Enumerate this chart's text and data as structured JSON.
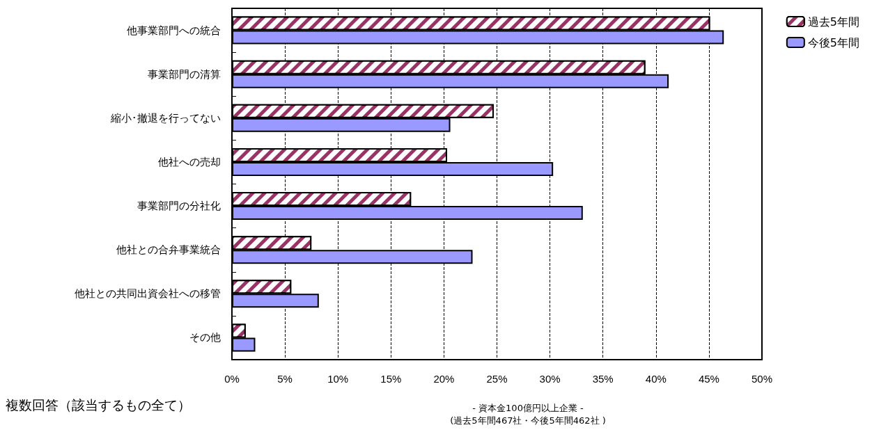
{
  "chart_data": {
    "type": "bar",
    "orientation": "horizontal",
    "categories": [
      "他事業部門への統合",
      "事業部門の清算",
      "縮小･撤退を行ってない",
      "他社への売却",
      "事業部門の分社化",
      "他社との合弁事業統合",
      "他社との共同出資会社への移管",
      "その他"
    ],
    "series": [
      {
        "name": "過去5年間",
        "color": "#993366",
        "values": [
          45.1,
          39.0,
          24.7,
          20.3,
          16.9,
          7.5,
          5.6,
          1.3
        ]
      },
      {
        "name": "今後5年間",
        "color": "#9999ff",
        "values": [
          46.4,
          41.2,
          20.6,
          30.3,
          33.1,
          22.7,
          8.2,
          2.2
        ]
      }
    ],
    "xlim": [
      0,
      50
    ],
    "xticks": [
      {
        "value": 0,
        "label": "0%"
      },
      {
        "value": 5,
        "label": "5%"
      },
      {
        "value": 10,
        "label": "10%"
      },
      {
        "value": 15,
        "label": "15%"
      },
      {
        "value": 20,
        "label": "20%"
      },
      {
        "value": 25,
        "label": "25%"
      },
      {
        "value": 30,
        "label": "30%"
      },
      {
        "value": 35,
        "label": "35%"
      },
      {
        "value": 40,
        "label": "40%"
      },
      {
        "value": 45,
        "label": "45%"
      },
      {
        "value": 50,
        "label": "50%"
      }
    ],
    "grid": "x",
    "legend": "top right",
    "annotations": [
      "複数回答（該当するもの全て）",
      "- 資本金100億円以上企業 -",
      "(過去5年間467社・今後5年間462社 )"
    ]
  }
}
